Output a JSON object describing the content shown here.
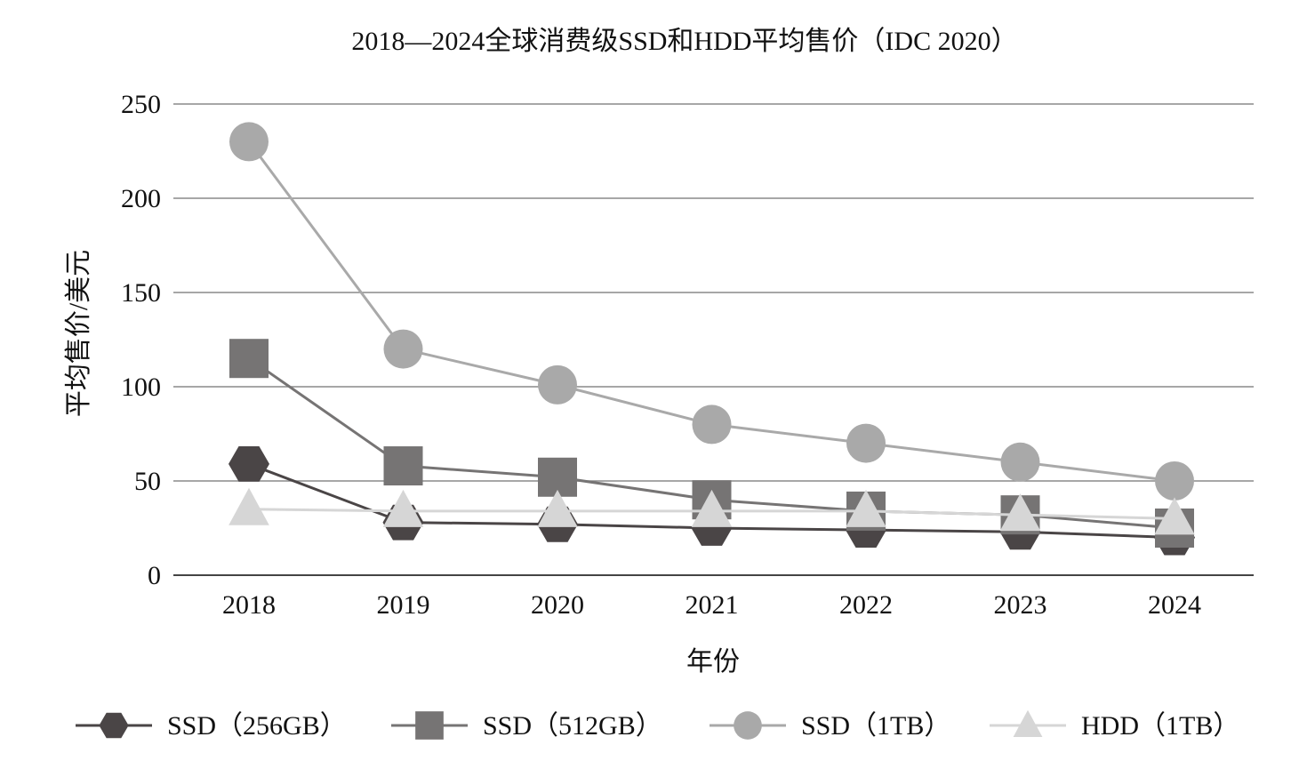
{
  "chart_data": {
    "type": "line",
    "title": "2018—2024全球消费级SSD和HDD平均售价（IDC 2020）",
    "xlabel": "年份",
    "ylabel": "平均售价/美元",
    "x": [
      "2018",
      "2019",
      "2020",
      "2021",
      "2022",
      "2023",
      "2024"
    ],
    "ylim": [
      0,
      250
    ],
    "yticks": [
      "0",
      "50",
      "100",
      "150",
      "200",
      "250"
    ],
    "grid": "horizontal",
    "legend_position": "bottom",
    "series": [
      {
        "name": "SSD（256GB）",
        "values": [
          59,
          28,
          27,
          25,
          24,
          23,
          20
        ],
        "color": "#4a4546",
        "marker": "hexagon"
      },
      {
        "name": "SSD（512GB）",
        "values": [
          115,
          58,
          52,
          40,
          34,
          32,
          25
        ],
        "color": "#767474",
        "marker": "square"
      },
      {
        "name": "SSD（1TB）",
        "values": [
          230,
          120,
          101,
          80,
          70,
          60,
          50
        ],
        "color": "#a9a9a9",
        "marker": "circle"
      },
      {
        "name": "HDD（1TB）",
        "values": [
          35,
          34,
          34,
          34,
          34,
          32,
          30
        ],
        "color": "#d6d6d6",
        "marker": "triangle"
      }
    ]
  }
}
